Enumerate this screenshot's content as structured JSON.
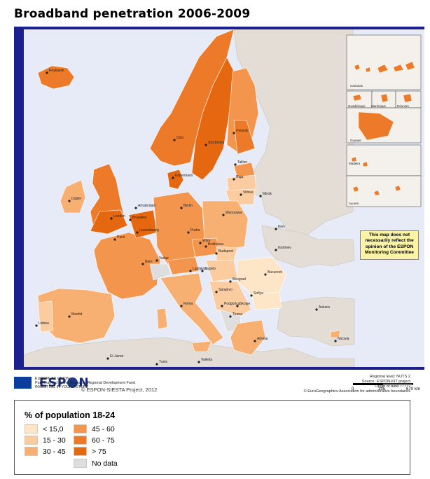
{
  "title": "Broadband penetration 2006-2009",
  "disclaimer": {
    "lines": [
      "This map does not",
      "necessarily reflect the",
      "opinion of the ESPON",
      "Monitoring Committee"
    ]
  },
  "logo": {
    "text_left": "ESP",
    "text_right": "N"
  },
  "copyright": "© ESPON-SIESTA Project, 2012",
  "scale": {
    "labels": [
      "0",
      "335",
      "670"
    ],
    "unit": "km"
  },
  "insets": [
    "Canarias",
    "Guadeloupe",
    "Martinique",
    "Réunion",
    "Guyane",
    "Madeira",
    "Açores"
  ],
  "eu": {
    "lines": [
      "EUROPEAN UNION",
      "Part-financed by the European Regional Development Fund",
      "INVESTING IN YOUR FUTURE"
    ]
  },
  "sources": [
    "Regional level: NUTS 2",
    "Source: ESPON-KIT project",
    "Origin of data:?????",
    "© EuroGeographics Association for administrative boundaries"
  ],
  "legend": {
    "title": "% of population 18-24",
    "classes": [
      {
        "label": "< 15,0",
        "color": "#fde6c8"
      },
      {
        "label": "15 - 30",
        "color": "#fbcc9f"
      },
      {
        "label": "30 - 45",
        "color": "#f7b071"
      },
      {
        "label": "45 - 60",
        "color": "#f3954c"
      },
      {
        "label": "60 - 75",
        "color": "#ed7a28"
      },
      {
        "label": "> 75",
        "color": "#e56710"
      },
      {
        "label": "No data",
        "color": "#dedede"
      }
    ]
  },
  "colors": {
    "sea": "#e6ebf7",
    "non_espon_land": "#e3ddd6",
    "frame": "#1c1f8e",
    "border": "#ffffff"
  },
  "cities": [
    "Reykjavik",
    "Oslo",
    "Stockholm",
    "Helsinki",
    "Tallinn",
    "Riga",
    "Vilnius",
    "Minsk",
    "Kobenhavn",
    "Dublin",
    "London",
    "Amsterdam",
    "Bruxelles",
    "Luxembourg",
    "Paris",
    "Berlin",
    "Praha",
    "Warszawa",
    "Kiev",
    "Bratislava",
    "Wien",
    "Budapest",
    "Bern",
    "Vaduz",
    "Ljubljana",
    "Zagreb",
    "Kishinev",
    "Bucuresti",
    "Beograd",
    "Sarajevo",
    "Podgorica",
    "Skopje",
    "Tirana",
    "Sofiya",
    "Roma",
    "Madrid",
    "Lisboa",
    "Ankara",
    "Athinai",
    "Valletta",
    "Tunis",
    "El-Jazair",
    "Nicosia"
  ]
}
